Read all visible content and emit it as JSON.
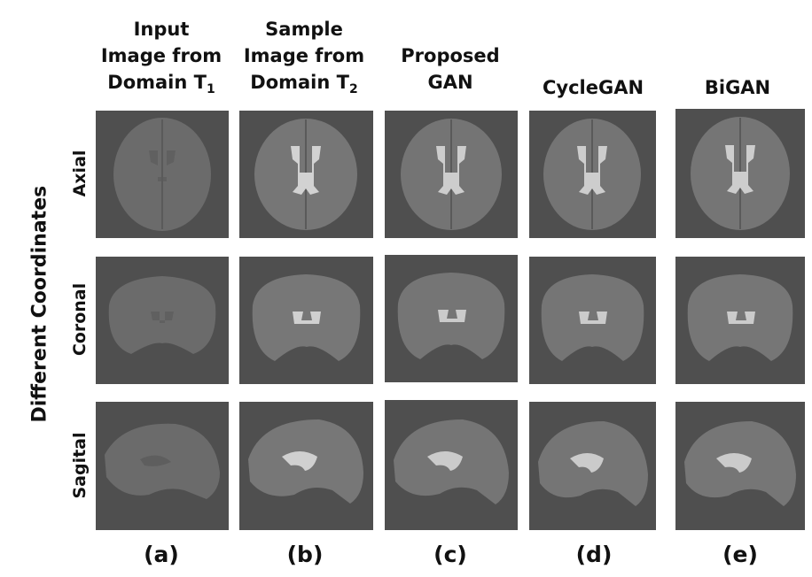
{
  "columns": [
    {
      "line1": "Input",
      "line2": "Image from",
      "line3": "Domain T",
      "sub": "1",
      "caption": "(a)"
    },
    {
      "line1": "Sample",
      "line2": "Image from",
      "line3": "Domain T",
      "sub": "2",
      "caption": "(b)"
    },
    {
      "line1": "",
      "line2": "Proposed",
      "line3": "GAN",
      "sub": "",
      "caption": "(c)"
    },
    {
      "line1": "",
      "line2": "",
      "line3": "CycleGAN",
      "sub": "",
      "caption": "(d)"
    },
    {
      "line1": "",
      "line2": "",
      "line3": "BiGAN",
      "sub": "",
      "caption": "(e)"
    }
  ],
  "rows": [
    {
      "label": "Axial"
    },
    {
      "label": "Coronal"
    },
    {
      "label": "Sagital"
    }
  ],
  "side_label": "Different Coordinates",
  "colors": {
    "background": "#4f4f4f",
    "tissue_input": "#6b6b6b",
    "tissue_output": "#737373",
    "ventricle": "#cfcfcf"
  }
}
